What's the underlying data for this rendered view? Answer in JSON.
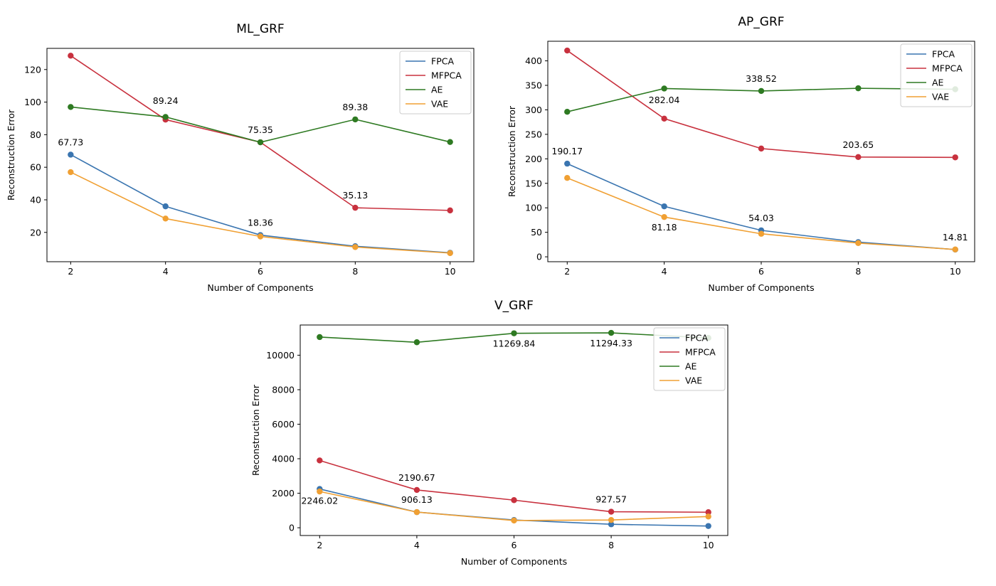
{
  "chart_data": [
    {
      "type": "line",
      "title": "ML_GRF",
      "xlabel": "Number of Components",
      "ylabel": "Reconstruction Error",
      "x": [
        2,
        4,
        6,
        8,
        10
      ],
      "xlim": [
        1.5,
        10.5
      ],
      "ylim": [
        2,
        133
      ],
      "yticks": [
        20,
        40,
        60,
        80,
        100,
        120
      ],
      "legend": "top-right",
      "series": [
        {
          "name": "FPCA",
          "color": "#3a75b0",
          "values": [
            67.73,
            36.0,
            18.36,
            11.5,
            7.5
          ]
        },
        {
          "name": "MFPCA",
          "color": "#c8313e",
          "values": [
            128.5,
            89.24,
            75.35,
            35.13,
            33.5
          ]
        },
        {
          "name": "AE",
          "color": "#2e7a22",
          "values": [
            97.0,
            90.9,
            75.35,
            89.38,
            75.5
          ]
        },
        {
          "name": "VAE",
          "color": "#f0a033",
          "values": [
            57.0,
            28.5,
            17.5,
            11.0,
            7.3
          ]
        }
      ],
      "annotations": [
        {
          "text": "67.73",
          "x": 2,
          "y": 67.73,
          "anchor": "above"
        },
        {
          "text": "89.24",
          "x": 4,
          "y": 89.24,
          "anchor": "above-far"
        },
        {
          "text": "75.35",
          "x": 6,
          "y": 75.35,
          "anchor": "above"
        },
        {
          "text": "89.38",
          "x": 8,
          "y": 89.38,
          "anchor": "above"
        },
        {
          "text": "35.13",
          "x": 8,
          "y": 35.13,
          "anchor": "above"
        },
        {
          "text": "18.36",
          "x": 6,
          "y": 18.36,
          "anchor": "above"
        }
      ]
    },
    {
      "type": "line",
      "title": "AP_GRF",
      "xlabel": "Number of Components",
      "ylabel": "Reconstruction Error",
      "x": [
        2,
        4,
        6,
        8,
        10
      ],
      "xlim": [
        1.6,
        10.4
      ],
      "ylim": [
        -10,
        440
      ],
      "yticks": [
        0,
        50,
        100,
        150,
        200,
        250,
        300,
        350,
        400
      ],
      "legend": "top-right",
      "series": [
        {
          "name": "FPCA",
          "color": "#3a75b0",
          "values": [
            190.17,
            103.0,
            54.03,
            30.0,
            14.81
          ]
        },
        {
          "name": "MFPCA",
          "color": "#c8313e",
          "values": [
            421.0,
            282.04,
            221.0,
            203.65,
            203.0
          ]
        },
        {
          "name": "AE",
          "color": "#2e7a22",
          "values": [
            296.0,
            343.5,
            338.52,
            344.0,
            342.0
          ]
        },
        {
          "name": "VAE",
          "color": "#f0a033",
          "values": [
            161.0,
            81.18,
            47.0,
            28.0,
            15.0
          ]
        }
      ],
      "annotations": [
        {
          "text": "190.17",
          "x": 2,
          "y": 190.17,
          "anchor": "above"
        },
        {
          "text": "282.04",
          "x": 4,
          "y": 282.04,
          "anchor": "above-far"
        },
        {
          "text": "338.52",
          "x": 6,
          "y": 338.52,
          "anchor": "above"
        },
        {
          "text": "203.65",
          "x": 8,
          "y": 203.65,
          "anchor": "above"
        },
        {
          "text": "54.03",
          "x": 6,
          "y": 54.03,
          "anchor": "above"
        },
        {
          "text": "81.18",
          "x": 4,
          "y": 81.18,
          "anchor": "below"
        },
        {
          "text": "14.81",
          "x": 10,
          "y": 14.81,
          "anchor": "above"
        }
      ]
    },
    {
      "type": "line",
      "title": "V_GRF",
      "xlabel": "Number of Components",
      "ylabel": "Reconstruction Error",
      "x": [
        2,
        4,
        6,
        8,
        10
      ],
      "xlim": [
        1.6,
        10.4
      ],
      "ylim": [
        -450,
        11750
      ],
      "yticks": [
        0,
        2000,
        4000,
        6000,
        8000,
        10000
      ],
      "legend": "top-right",
      "series": [
        {
          "name": "FPCA",
          "color": "#3a75b0",
          "values": [
            2246.02,
            906.13,
            450.0,
            200.0,
            100.0
          ]
        },
        {
          "name": "MFPCA",
          "color": "#c8313e",
          "values": [
            3900.0,
            2190.67,
            1600.0,
            927.57,
            900.0
          ]
        },
        {
          "name": "AE",
          "color": "#2e7a22",
          "values": [
            11050.0,
            10750.0,
            11269.84,
            11294.33,
            11000.0
          ]
        },
        {
          "name": "VAE",
          "color": "#f0a033",
          "values": [
            2100.0,
            906.13,
            420.0,
            450.0,
            650.0
          ]
        }
      ],
      "annotations": [
        {
          "text": "11269.84",
          "x": 6,
          "y": 11269.84,
          "anchor": "below"
        },
        {
          "text": "11294.33",
          "x": 8,
          "y": 11294.33,
          "anchor": "below"
        },
        {
          "text": "2190.67",
          "x": 4,
          "y": 2190.67,
          "anchor": "above"
        },
        {
          "text": "906.13",
          "x": 4,
          "y": 906.13,
          "anchor": "above"
        },
        {
          "text": "927.57",
          "x": 8,
          "y": 927.57,
          "anchor": "above"
        },
        {
          "text": "2246.02",
          "x": 2,
          "y": 2246.02,
          "anchor": "below-far"
        }
      ]
    }
  ]
}
